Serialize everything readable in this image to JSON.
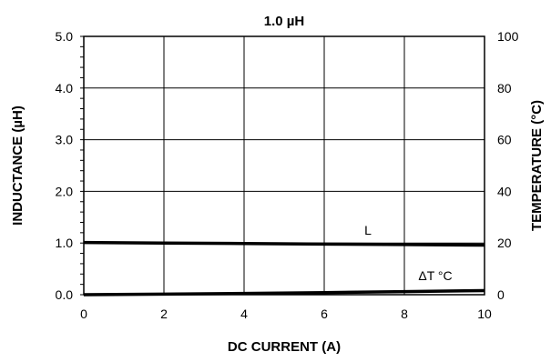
{
  "chart_data": {
    "type": "line",
    "title": "1.0 µH",
    "xlabel": "DC CURRENT (A)",
    "ylabel": "INDUCTANCE (µH)",
    "y2label": "TEMPERATURE (°C)",
    "xlim": [
      0,
      10
    ],
    "ylim": [
      0,
      5
    ],
    "y2lim": [
      0,
      100
    ],
    "x_ticks": [
      0,
      2,
      4,
      6,
      8,
      10
    ],
    "x_tick_labels": [
      "0",
      "2",
      "4",
      "6",
      "8",
      "10"
    ],
    "y_ticks": [
      0,
      1,
      2,
      3,
      4,
      5
    ],
    "y_tick_labels": [
      "0.0",
      "1.0",
      "2.0",
      "3.0",
      "4.0",
      "5.0"
    ],
    "y2_ticks": [
      0,
      20,
      40,
      60,
      80,
      100
    ],
    "y2_tick_labels": [
      "0",
      "20",
      "40",
      "60",
      "80",
      "100"
    ],
    "grid": true,
    "series": [
      {
        "name": "L",
        "axis": "left",
        "x": [
          0,
          2,
          4,
          6,
          8,
          10
        ],
        "y": [
          1.01,
          1.0,
          0.99,
          0.98,
          0.97,
          0.96
        ]
      },
      {
        "name": "ΔT °C",
        "axis": "right",
        "x": [
          0,
          2,
          4,
          6,
          8,
          10
        ],
        "y": [
          0,
          0.2,
          0.5,
          0.8,
          1.2,
          1.6
        ]
      }
    ]
  }
}
